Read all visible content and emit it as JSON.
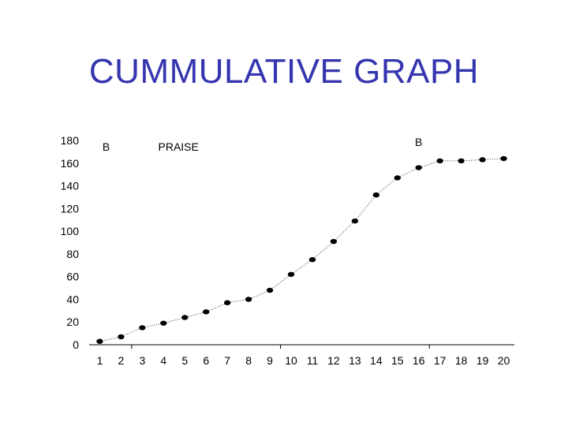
{
  "title": "CUMMULATIVE GRAPH",
  "colors": {
    "title": "#3535b0",
    "points": "#000000",
    "axis": "#000000"
  },
  "chart_data": {
    "type": "scatter",
    "title": "CUMMULATIVE GRAPH",
    "xlabel": "",
    "ylabel": "",
    "x": [
      1,
      2,
      3,
      4,
      5,
      6,
      7,
      8,
      9,
      10,
      11,
      12,
      13,
      14,
      15,
      16,
      17,
      18,
      19,
      20
    ],
    "y_ticks": [
      0,
      20,
      40,
      60,
      80,
      100,
      120,
      140,
      160,
      180
    ],
    "ylim": [
      0,
      180
    ],
    "series": [
      {
        "values": [
          3,
          7,
          15,
          19,
          24,
          29,
          37,
          40,
          48,
          62,
          75,
          91,
          109,
          132,
          147,
          156,
          162,
          162,
          163,
          164
        ]
      }
    ],
    "connector": "dotted",
    "phase_dividers_after_x": [
      2,
      9,
      16
    ],
    "annotations": [
      {
        "text": "B",
        "x": 1.3
      },
      {
        "text": "PRAISE",
        "x": 4.7
      },
      {
        "text": "B",
        "x": 16
      }
    ],
    "grid": false,
    "legend": "none"
  }
}
